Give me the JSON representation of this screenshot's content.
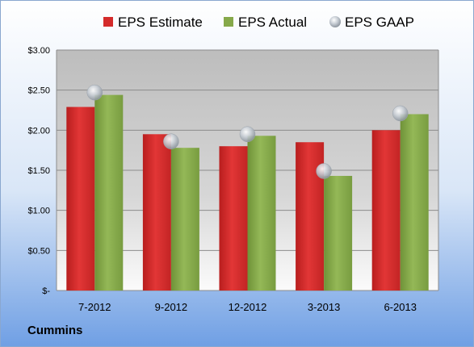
{
  "company": "Cummins",
  "colors": {
    "estimate": "#d42b2b",
    "actual": "#86a94a",
    "gaap": "#b9c2cc"
  },
  "chart_data": {
    "type": "bar",
    "categories": [
      "7-2012",
      "9-2012",
      "12-2012",
      "3-2013",
      "6-2013"
    ],
    "series": [
      {
        "name": "EPS Estimate",
        "values": [
          2.29,
          1.95,
          1.8,
          1.85,
          2.0
        ]
      },
      {
        "name": "EPS Actual",
        "values": [
          2.44,
          1.78,
          1.93,
          1.43,
          2.2
        ]
      },
      {
        "name": "EPS GAAP",
        "type": "scatter",
        "values": [
          2.47,
          1.86,
          1.95,
          1.49,
          2.21
        ]
      }
    ],
    "ylim": [
      0,
      3
    ],
    "yticks": [
      0,
      0.5,
      1.0,
      1.5,
      2.0,
      2.5,
      3.0
    ],
    "ytick_labels": [
      "$-",
      "$0.50",
      "$1.00",
      "$1.50",
      "$2.00",
      "$2.50",
      "$3.00"
    ],
    "grid": true,
    "legend_position": "top"
  }
}
